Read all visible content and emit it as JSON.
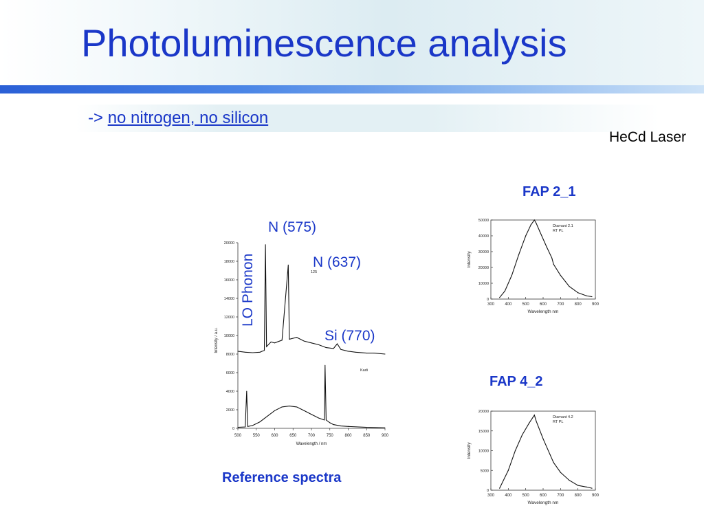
{
  "slide": {
    "title": "Photoluminescence analysis",
    "bullet_arrow": "->",
    "bullet_link": "no nitrogen, no silicon",
    "laser_note": "HeCd Laser"
  },
  "colors": {
    "title": "#1a37c8",
    "rule": "#2a5fd6",
    "band": "#dcecf2"
  },
  "reference": {
    "caption": "Reference spectra",
    "peaks": {
      "lo_phonon": "LO Phonon",
      "n575": "N (575)",
      "n637": "N (637)",
      "si770": "Si (770)"
    },
    "inset": {
      "upper_note": "125",
      "lower_note": "Kadi"
    },
    "xlabel": "Wavelength / nm",
    "ylabel": "Intensity / a.u.",
    "xticks": [
      "500",
      "550",
      "600",
      "650",
      "700",
      "750",
      "800",
      "850",
      "900"
    ],
    "yticks": [
      "20000",
      "18000",
      "16000",
      "14000",
      "12000",
      "10000",
      "8000",
      "6000",
      "4000",
      "2000",
      "0"
    ]
  },
  "fap21": {
    "title": "FAP 2_1",
    "legend": [
      "Diamant 2.1",
      "RT PL"
    ],
    "xlabel": "Wavelength nm",
    "ylabel": "Intensity",
    "xticks": [
      "300",
      "400",
      "500",
      "600",
      "700",
      "800",
      "900"
    ],
    "yticks": [
      "50000",
      "40000",
      "30000",
      "20000",
      "10000",
      "0"
    ]
  },
  "fap42": {
    "title": "FAP 4_2",
    "legend": [
      "Diamant 4.2",
      "RT PL"
    ],
    "xlabel": "Wavelength nm",
    "ylabel": "Intensity",
    "xticks": [
      "300",
      "400",
      "500",
      "600",
      "700",
      "800",
      "900"
    ],
    "yticks": [
      "20000",
      "15000",
      "10000",
      "5000",
      "0"
    ]
  },
  "chart_data": [
    {
      "type": "line",
      "title": "Reference spectra",
      "xlabel": "Wavelength / nm",
      "ylabel": "Intensity / a.u.",
      "xlim": [
        500,
        900
      ],
      "ylim": [
        0,
        20000
      ],
      "grid": false,
      "series": [
        {
          "name": "125",
          "x": [
            500,
            520,
            540,
            560,
            572,
            575,
            578,
            590,
            600,
            620,
            637,
            640,
            660,
            680,
            700,
            720,
            740,
            760,
            770,
            780,
            800,
            820,
            850,
            870,
            900
          ],
          "y": [
            8300,
            8200,
            8150,
            8200,
            8400,
            19800,
            8800,
            9300,
            9200,
            9500,
            17600,
            9600,
            9800,
            9400,
            9200,
            9000,
            8700,
            8600,
            9100,
            8500,
            8300,
            8200,
            8100,
            8100,
            8000
          ]
        },
        {
          "name": "Kadi",
          "x": [
            500,
            520,
            524,
            527,
            540,
            560,
            580,
            600,
            620,
            640,
            660,
            680,
            700,
            720,
            735,
            737,
            740,
            750,
            760,
            780,
            800,
            850,
            900
          ],
          "y": [
            100,
            150,
            4000,
            200,
            300,
            700,
            1300,
            1900,
            2300,
            2400,
            2300,
            1900,
            1500,
            1100,
            900,
            6800,
            900,
            600,
            400,
            250,
            200,
            100,
            50
          ]
        }
      ],
      "annotations": [
        "LO Phonon",
        "N (575)",
        "N (637)",
        "Si (770)"
      ]
    },
    {
      "type": "line",
      "title": "FAP 2_1",
      "xlabel": "Wavelength nm",
      "ylabel": "Intensity",
      "xlim": [
        300,
        900
      ],
      "ylim": [
        0,
        50000
      ],
      "grid": false,
      "series": [
        {
          "name": "Diamant 2.1",
          "x": [
            350,
            380,
            420,
            460,
            500,
            530,
            550,
            560,
            580,
            620,
            650,
            660,
            700,
            750,
            800,
            850,
            880
          ],
          "y": [
            1000,
            5000,
            15000,
            28000,
            40000,
            47000,
            50000,
            48000,
            43000,
            33000,
            26000,
            22000,
            15000,
            8000,
            4000,
            2000,
            1500
          ]
        }
      ],
      "annotations": [
        "RT PL"
      ]
    },
    {
      "type": "line",
      "title": "FAP 4_2",
      "xlabel": "Wavelength nm",
      "ylabel": "Intensity",
      "xlim": [
        300,
        900
      ],
      "ylim": [
        0,
        20000
      ],
      "grid": false,
      "series": [
        {
          "name": "Diamant 4.2",
          "x": [
            350,
            400,
            440,
            480,
            520,
            550,
            560,
            600,
            640,
            660,
            700,
            750,
            800,
            850,
            880
          ],
          "y": [
            500,
            5000,
            10000,
            14000,
            17000,
            19000,
            17500,
            13000,
            9000,
            7000,
            4500,
            2500,
            1200,
            800,
            500
          ]
        }
      ],
      "annotations": [
        "RT PL"
      ]
    }
  ]
}
